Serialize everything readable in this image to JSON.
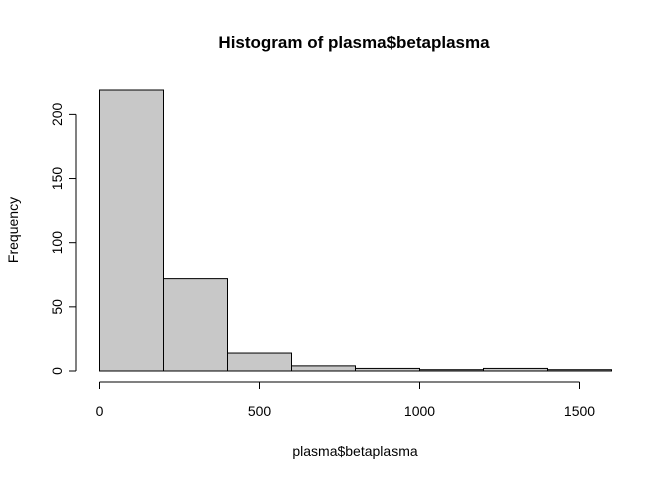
{
  "chart_data": {
    "type": "bar",
    "title": "Histogram of plasma$betaplasma",
    "xlabel": "plasma$betaplasma",
    "ylabel": "Frequency",
    "bins": [
      {
        "start": 0,
        "end": 200,
        "count": 219
      },
      {
        "start": 200,
        "end": 400,
        "count": 72
      },
      {
        "start": 400,
        "end": 600,
        "count": 14
      },
      {
        "start": 600,
        "end": 800,
        "count": 4
      },
      {
        "start": 800,
        "end": 1000,
        "count": 2
      },
      {
        "start": 1000,
        "end": 1200,
        "count": 1
      },
      {
        "start": 1200,
        "end": 1400,
        "count": 2
      },
      {
        "start": 1400,
        "end": 1600,
        "count": 1
      }
    ],
    "xticks": [
      0,
      500,
      1000,
      1500
    ],
    "yticks": [
      0,
      50,
      100,
      150,
      200
    ],
    "xlim": [
      0,
      1600
    ],
    "ylim": [
      0,
      219
    ],
    "bar_color": "#c8c8c8",
    "edge_color": "#000000",
    "grid": false
  }
}
